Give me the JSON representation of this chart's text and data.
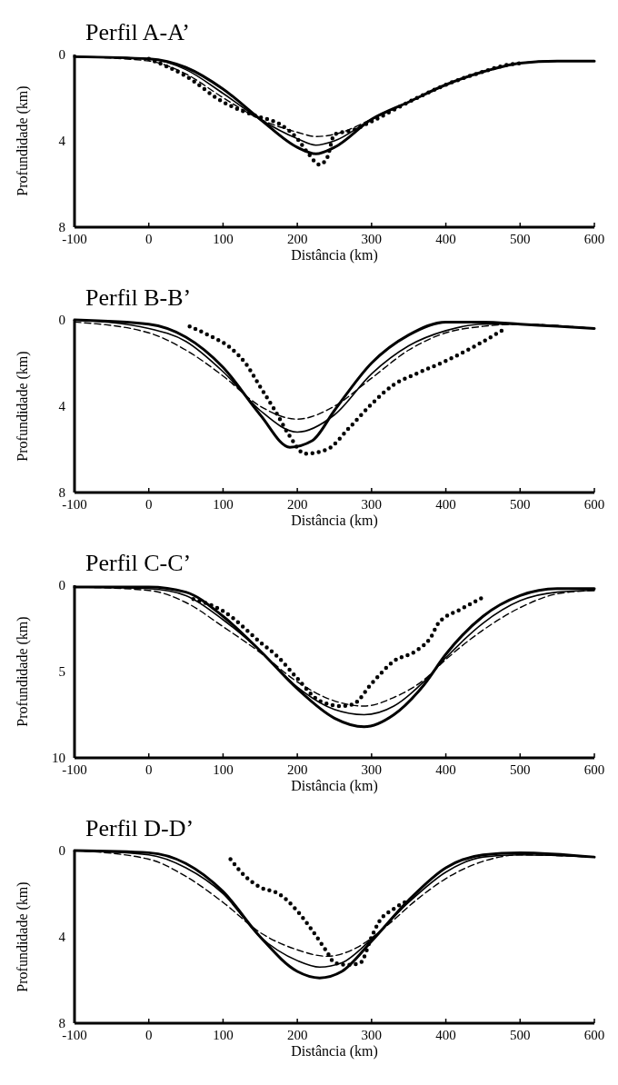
{
  "chart_data": [
    {
      "type": "line",
      "title": "Perfil A-A’",
      "xlabel": "Distância (km)",
      "ylabel": "Profundidade (km)",
      "xlim": [
        -100,
        600
      ],
      "xticks": [
        -100,
        0,
        100,
        200,
        300,
        400,
        500,
        600
      ],
      "ylim": [
        8,
        0
      ],
      "yticks": [
        0,
        4,
        8
      ],
      "series": [
        {
          "color": "#000000",
          "line_style": "solid",
          "x": [
            -100,
            0,
            50,
            100,
            150,
            200,
            225,
            250,
            300,
            350,
            400,
            450,
            500,
            550,
            600
          ],
          "values": [
            0.1,
            0.2,
            0.6,
            1.6,
            3.0,
            4.3,
            4.6,
            4.3,
            3.0,
            2.2,
            1.4,
            0.8,
            0.4,
            0.3,
            0.3
          ]
        },
        {
          "color": "#000000",
          "line_style": "solid",
          "x": [
            -100,
            0,
            50,
            100,
            150,
            200,
            225,
            250,
            300,
            350,
            400,
            450,
            500,
            550,
            600
          ],
          "values": [
            0.1,
            0.2,
            0.7,
            1.8,
            3.0,
            3.9,
            4.2,
            4.0,
            3.0,
            2.2,
            1.4,
            0.8,
            0.4,
            0.3,
            0.3
          ]
        },
        {
          "color": "#000000",
          "line_style": "dashed",
          "x": [
            -100,
            0,
            50,
            100,
            150,
            200,
            225,
            250,
            300,
            350,
            400,
            450,
            500,
            550,
            600
          ],
          "values": [
            0.1,
            0.3,
            0.9,
            2.0,
            3.0,
            3.6,
            3.8,
            3.7,
            3.0,
            2.2,
            1.4,
            0.8,
            0.4,
            0.3,
            0.3
          ]
        },
        {
          "color": "#000000",
          "line_style": "dotted",
          "x": [
            0,
            50,
            100,
            125,
            150,
            175,
            200,
            215,
            230,
            240,
            250,
            275,
            300,
            350,
            400,
            450,
            480,
            500
          ],
          "values": [
            0.2,
            1.0,
            2.2,
            2.6,
            2.9,
            3.2,
            3.9,
            4.6,
            5.1,
            4.8,
            3.7,
            3.5,
            3.1,
            2.2,
            1.4,
            0.8,
            0.5,
            0.4
          ]
        }
      ]
    },
    {
      "type": "line",
      "title": "Perfil B-B’",
      "xlabel": "Distância (km)",
      "ylabel": "Profundidade (km)",
      "xlim": [
        -100,
        600
      ],
      "xticks": [
        -100,
        0,
        100,
        200,
        300,
        400,
        500,
        600
      ],
      "ylim": [
        8,
        0
      ],
      "yticks": [
        0,
        4,
        8
      ],
      "series": [
        {
          "color": "#000000",
          "line_style": "solid",
          "x": [
            -100,
            0,
            50,
            100,
            150,
            190,
            220,
            250,
            300,
            350,
            400,
            450,
            500,
            550,
            600
          ],
          "values": [
            0.0,
            0.2,
            0.8,
            2.2,
            4.4,
            5.9,
            5.6,
            4.2,
            2.0,
            0.7,
            0.1,
            0.1,
            0.2,
            0.3,
            0.4
          ]
        },
        {
          "color": "#000000",
          "line_style": "solid",
          "x": [
            -100,
            0,
            50,
            100,
            150,
            200,
            250,
            300,
            350,
            400,
            450,
            500,
            600
          ],
          "values": [
            0.0,
            0.4,
            1.0,
            2.4,
            4.2,
            5.2,
            4.4,
            2.5,
            1.2,
            0.5,
            0.2,
            0.2,
            0.4
          ]
        },
        {
          "color": "#000000",
          "line_style": "dashed",
          "x": [
            -100,
            0,
            50,
            100,
            150,
            200,
            250,
            300,
            350,
            400,
            450,
            500,
            600
          ],
          "values": [
            0.1,
            0.6,
            1.4,
            2.6,
            4.0,
            4.6,
            4.0,
            2.7,
            1.4,
            0.6,
            0.3,
            0.2,
            0.4
          ]
        },
        {
          "color": "#000000",
          "line_style": "dotted",
          "x": [
            55,
            80,
            110,
            130,
            150,
            170,
            190,
            210,
            240,
            270,
            300,
            330,
            360,
            400,
            440,
            480
          ],
          "values": [
            0.3,
            0.7,
            1.3,
            2.0,
            3.1,
            4.2,
            5.4,
            6.2,
            6.0,
            5.0,
            3.9,
            3.0,
            2.5,
            1.9,
            1.2,
            0.4
          ]
        }
      ]
    },
    {
      "type": "line",
      "title": "Perfil C-C’",
      "xlabel": "Distância (km)",
      "ylabel": "Profundidade (km)",
      "xlim": [
        -100,
        600
      ],
      "xticks": [
        -100,
        0,
        100,
        200,
        300,
        400,
        500,
        600
      ],
      "ylim": [
        10,
        0
      ],
      "yticks": [
        0,
        5,
        10
      ],
      "series": [
        {
          "color": "#000000",
          "line_style": "solid",
          "x": [
            -100,
            0,
            50,
            100,
            150,
            200,
            250,
            290,
            330,
            370,
            400,
            450,
            500,
            550,
            600
          ],
          "values": [
            0.1,
            0.1,
            0.4,
            1.8,
            3.8,
            6.0,
            7.7,
            8.2,
            7.5,
            5.8,
            4.0,
            1.8,
            0.6,
            0.2,
            0.2
          ]
        },
        {
          "color": "#000000",
          "line_style": "solid",
          "x": [
            -100,
            0,
            50,
            100,
            150,
            200,
            250,
            290,
            330,
            370,
            400,
            450,
            500,
            550,
            600
          ],
          "values": [
            0.1,
            0.2,
            0.6,
            2.0,
            3.8,
            5.9,
            7.2,
            7.5,
            7.0,
            5.6,
            4.2,
            2.2,
            0.9,
            0.4,
            0.3
          ]
        },
        {
          "color": "#000000",
          "line_style": "dashed",
          "x": [
            -100,
            0,
            50,
            100,
            150,
            200,
            250,
            290,
            330,
            370,
            400,
            450,
            500,
            550,
            600
          ],
          "values": [
            0.1,
            0.3,
            1.0,
            2.4,
            3.9,
            5.6,
            6.7,
            7.0,
            6.5,
            5.5,
            4.3,
            2.6,
            1.3,
            0.5,
            0.3
          ]
        },
        {
          "color": "#000000",
          "line_style": "dotted",
          "x": [
            60,
            100,
            150,
            175,
            200,
            230,
            260,
            275,
            300,
            330,
            360,
            380,
            390,
            420,
            450
          ],
          "values": [
            0.8,
            1.5,
            3.3,
            4.2,
            5.4,
            6.7,
            7.0,
            6.9,
            5.7,
            4.4,
            3.8,
            3.0,
            2.2,
            1.4,
            0.7
          ]
        }
      ]
    },
    {
      "type": "line",
      "title": "Perfil D-D’",
      "xlabel": "Distância (km)",
      "ylabel": "Profundidade (km)",
      "xlim": [
        -100,
        600
      ],
      "xticks": [
        -100,
        0,
        100,
        200,
        300,
        400,
        500,
        600
      ],
      "ylim": [
        8,
        0
      ],
      "yticks": [
        0,
        4,
        8
      ],
      "series": [
        {
          "color": "#000000",
          "line_style": "solid",
          "x": [
            -100,
            0,
            50,
            100,
            150,
            200,
            230,
            260,
            300,
            350,
            400,
            450,
            500,
            600
          ],
          "values": [
            0.0,
            0.1,
            0.6,
            1.9,
            4.0,
            5.6,
            5.9,
            5.6,
            4.2,
            2.3,
            0.8,
            0.2,
            0.1,
            0.3
          ]
        },
        {
          "color": "#000000",
          "line_style": "solid",
          "x": [
            -100,
            0,
            50,
            100,
            150,
            200,
            230,
            260,
            300,
            350,
            400,
            450,
            500,
            600
          ],
          "values": [
            0.0,
            0.2,
            0.8,
            2.0,
            4.0,
            5.1,
            5.4,
            5.2,
            4.1,
            2.4,
            1.0,
            0.3,
            0.2,
            0.3
          ]
        },
        {
          "color": "#000000",
          "line_style": "dashed",
          "x": [
            -100,
            0,
            50,
            100,
            150,
            200,
            240,
            280,
            320,
            360,
            400,
            450,
            500,
            600
          ],
          "values": [
            0.0,
            0.4,
            1.2,
            2.4,
            3.8,
            4.6,
            4.9,
            4.5,
            3.5,
            2.3,
            1.3,
            0.5,
            0.2,
            0.3
          ]
        },
        {
          "color": "#000000",
          "line_style": "dotted",
          "x": [
            110,
            130,
            150,
            175,
            200,
            220,
            240,
            250,
            270,
            285,
            300,
            310,
            330,
            350
          ],
          "values": [
            0.4,
            1.2,
            1.7,
            2.0,
            2.8,
            3.7,
            4.7,
            5.2,
            5.3,
            5.2,
            4.0,
            3.3,
            2.7,
            2.3
          ]
        }
      ]
    }
  ]
}
